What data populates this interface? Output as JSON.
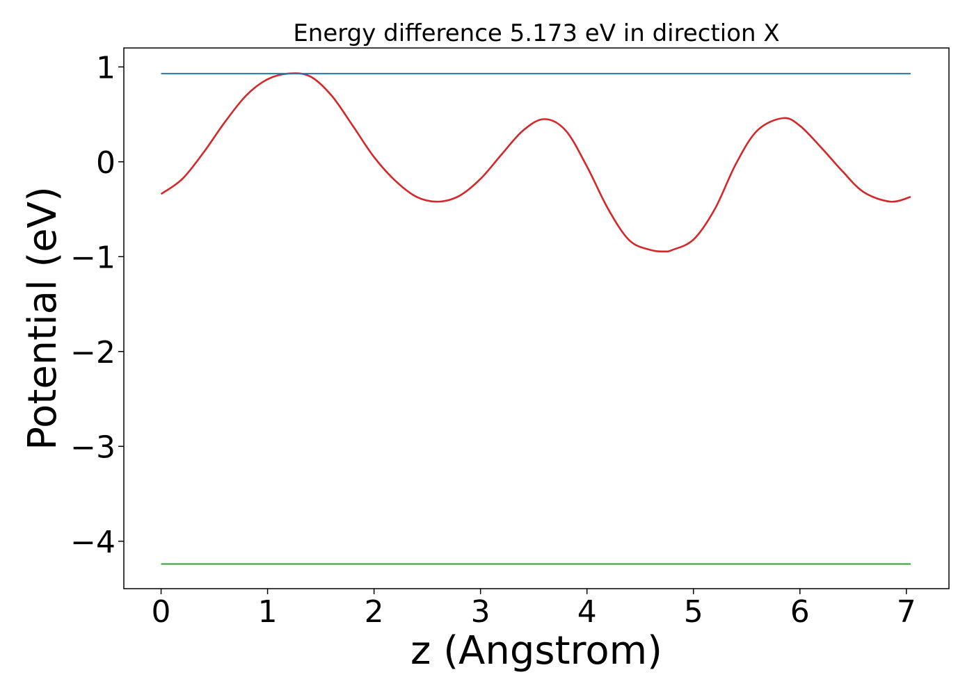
{
  "chart_data": {
    "type": "line",
    "title": "Energy difference 5.173 eV in direction X",
    "xlabel": "z (Angstrom)",
    "ylabel": "Potential (eV)",
    "xlim": [
      -0.35,
      7.4
    ],
    "ylim": [
      -4.5,
      1.2
    ],
    "xticks": [
      0,
      1,
      2,
      3,
      4,
      5,
      6,
      7
    ],
    "xtick_labels": [
      "0",
      "1",
      "2",
      "3",
      "4",
      "5",
      "6",
      "7"
    ],
    "yticks": [
      1,
      0,
      -1,
      -2,
      -3,
      -4
    ],
    "ytick_labels": [
      "1",
      "0",
      "−1",
      "−2",
      "−3",
      "−4"
    ],
    "grid": false,
    "legend": false,
    "series": [
      {
        "kind": "curve",
        "color": "#d62728",
        "x": [
          0.0,
          0.2,
          0.4,
          0.6,
          0.8,
          1.0,
          1.2,
          1.4,
          1.6,
          1.8,
          2.0,
          2.2,
          2.4,
          2.6,
          2.8,
          3.0,
          3.2,
          3.4,
          3.6,
          3.8,
          4.0,
          4.2,
          4.4,
          4.6,
          4.73,
          4.8,
          5.0,
          5.2,
          5.4,
          5.6,
          5.84,
          6.0,
          6.2,
          6.4,
          6.6,
          6.85,
          7.04
        ],
        "y": [
          -0.34,
          -0.18,
          0.1,
          0.42,
          0.7,
          0.87,
          0.93,
          0.9,
          0.7,
          0.38,
          0.05,
          -0.2,
          -0.37,
          -0.42,
          -0.36,
          -0.18,
          0.08,
          0.33,
          0.45,
          0.33,
          -0.05,
          -0.5,
          -0.83,
          -0.93,
          -0.945,
          -0.93,
          -0.82,
          -0.5,
          -0.02,
          0.33,
          0.46,
          0.38,
          0.15,
          -0.1,
          -0.32,
          -0.42,
          -0.37
        ]
      },
      {
        "kind": "hline",
        "color": "#1f77b4",
        "x": [
          0.0,
          7.04
        ],
        "y": [
          0.93,
          0.93
        ]
      },
      {
        "kind": "hline",
        "color": "#2ca02c",
        "x": [
          0.0,
          7.04
        ],
        "y": [
          -4.24,
          -4.24
        ]
      }
    ]
  }
}
